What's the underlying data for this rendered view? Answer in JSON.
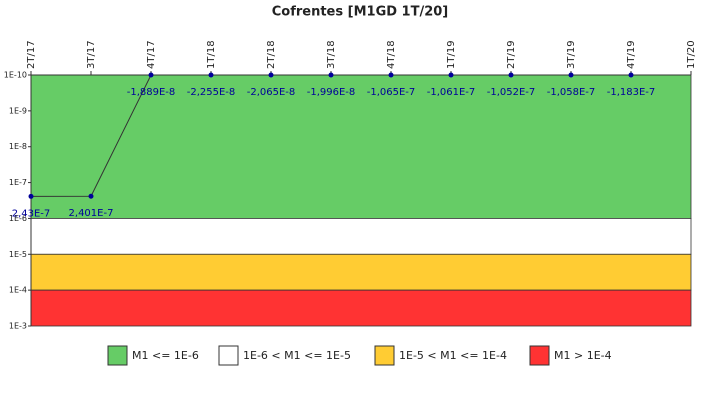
{
  "chart_data": {
    "type": "line",
    "title": "Cofrentes [M1GD 1T/20]",
    "categories": [
      "2T/17",
      "3T/17",
      "4T/17",
      "1T/18",
      "2T/18",
      "3T/18",
      "4T/18",
      "1T/19",
      "2T/19",
      "3T/19",
      "4T/19",
      "1T/20"
    ],
    "series": [
      {
        "name": "M1",
        "color": "#000099",
        "line_color": "#333333",
        "values": [
          2.43e-07,
          2.401e-07,
          -1.889e-08,
          -2.255e-08,
          -2.065e-08,
          -1.996e-08,
          -1.065e-07,
          -1.061e-07,
          -1.052e-07,
          -1.058e-07,
          -1.183e-07,
          null
        ],
        "value_labels": [
          "2,43E-7",
          "2,401E-7",
          "-1,889E-8",
          "-2,255E-8",
          "-2,065E-8",
          "-1,996E-8",
          "-1,065E-7",
          "-1,061E-7",
          "-1,052E-7",
          "-1,058E-7",
          "-1,183E-7",
          null
        ]
      }
    ],
    "bands": [
      {
        "name": "M1 <= 1E-6",
        "color": "#66cc66",
        "range": [
          1e-10,
          1e-06
        ]
      },
      {
        "name": "1E-6 < M1 <= 1E-5",
        "color": "#ffffff",
        "range": [
          1e-06,
          1e-05
        ]
      },
      {
        "name": "1E-5 < M1 <= 1E-4",
        "color": "#ffcc33",
        "range": [
          1e-05,
          0.0001
        ]
      },
      {
        "name": "M1 > 1E-4",
        "color": "#ff3333",
        "range": [
          0.0001,
          0.001
        ]
      }
    ],
    "log_scale": true,
    "y_inverted": true,
    "ylim": [
      1e-10,
      0.001
    ],
    "yticks": [
      {
        "value": 1e-10,
        "label": "1E-10"
      },
      {
        "value": 1e-09,
        "label": "1E-9"
      },
      {
        "value": 1e-08,
        "label": "1E-8"
      },
      {
        "value": 1e-07,
        "label": "1E-7"
      },
      {
        "value": 1e-06,
        "label": "1E-6"
      },
      {
        "value": 1e-05,
        "label": "1E-5"
      },
      {
        "value": 0.0001,
        "label": "1E-4"
      },
      {
        "value": 0.001,
        "label": "1E-3"
      }
    ],
    "legend": "bottom"
  }
}
